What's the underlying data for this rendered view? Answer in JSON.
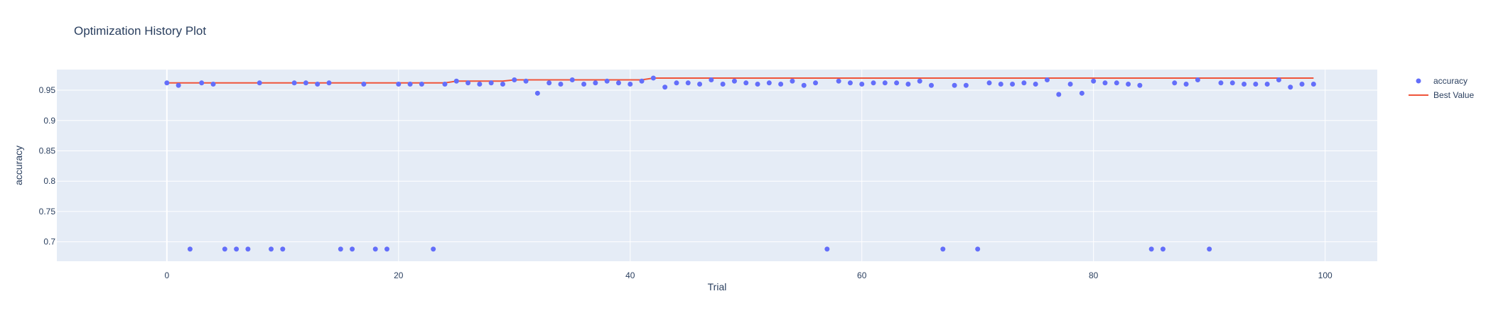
{
  "chart_data": {
    "type": "scatter",
    "title": "Optimization History Plot",
    "xlabel": "Trial",
    "ylabel": "accuracy",
    "xlim": [
      -9.5,
      104.5
    ],
    "ylim": [
      0.668,
      0.984
    ],
    "x_ticks": [
      0,
      20,
      40,
      60,
      80,
      100
    ],
    "y_ticks": [
      0.7,
      0.75,
      0.8,
      0.85,
      0.9,
      0.95
    ],
    "grid": true,
    "legend_position": "top-right",
    "series": [
      {
        "name": "accuracy",
        "mode": "markers",
        "color": "#636efa",
        "x": [
          0,
          1,
          2,
          3,
          4,
          5,
          6,
          7,
          8,
          9,
          10,
          11,
          12,
          13,
          14,
          15,
          16,
          17,
          18,
          19,
          20,
          21,
          22,
          23,
          24,
          25,
          26,
          27,
          28,
          29,
          30,
          31,
          32,
          33,
          34,
          35,
          36,
          37,
          38,
          39,
          40,
          41,
          42,
          43,
          44,
          45,
          46,
          47,
          48,
          49,
          50,
          51,
          52,
          53,
          54,
          55,
          56,
          57,
          58,
          59,
          60,
          61,
          62,
          63,
          64,
          65,
          66,
          67,
          68,
          69,
          70,
          71,
          72,
          73,
          74,
          75,
          76,
          77,
          78,
          79,
          80,
          81,
          82,
          83,
          84,
          85,
          86,
          87,
          88,
          89,
          90,
          91,
          92,
          93,
          94,
          95,
          96,
          97,
          98,
          99
        ],
        "y": [
          0.962,
          0.958,
          0.688,
          0.962,
          0.96,
          0.688,
          0.688,
          0.688,
          0.962,
          0.688,
          0.688,
          0.962,
          0.962,
          0.96,
          0.962,
          0.688,
          0.688,
          0.96,
          0.688,
          0.688,
          0.96,
          0.96,
          0.96,
          0.688,
          0.96,
          0.965,
          0.962,
          0.96,
          0.962,
          0.96,
          0.967,
          0.965,
          0.945,
          0.962,
          0.96,
          0.967,
          0.96,
          0.962,
          0.965,
          0.962,
          0.96,
          0.965,
          0.97,
          0.955,
          0.962,
          0.962,
          0.96,
          0.967,
          0.96,
          0.965,
          0.962,
          0.96,
          0.962,
          0.96,
          0.965,
          0.958,
          0.962,
          0.688,
          0.965,
          0.962,
          0.96,
          0.962,
          0.962,
          0.962,
          0.96,
          0.965,
          0.958,
          0.688,
          0.958,
          0.958,
          0.688,
          0.962,
          0.96,
          0.96,
          0.962,
          0.96,
          0.967,
          0.943,
          0.96,
          0.945,
          0.965,
          0.962,
          0.962,
          0.96,
          0.958,
          0.688,
          0.688,
          0.962,
          0.96,
          0.967,
          0.688,
          0.962,
          0.962,
          0.96,
          0.96,
          0.96,
          0.967,
          0.955,
          0.96,
          0.96
        ]
      },
      {
        "name": "Best Value",
        "mode": "lines",
        "color": "#ef553b",
        "x": [
          0,
          24,
          25,
          29,
          30,
          41,
          42,
          99
        ],
        "y": [
          0.962,
          0.962,
          0.965,
          0.965,
          0.967,
          0.967,
          0.97,
          0.97
        ]
      }
    ]
  }
}
